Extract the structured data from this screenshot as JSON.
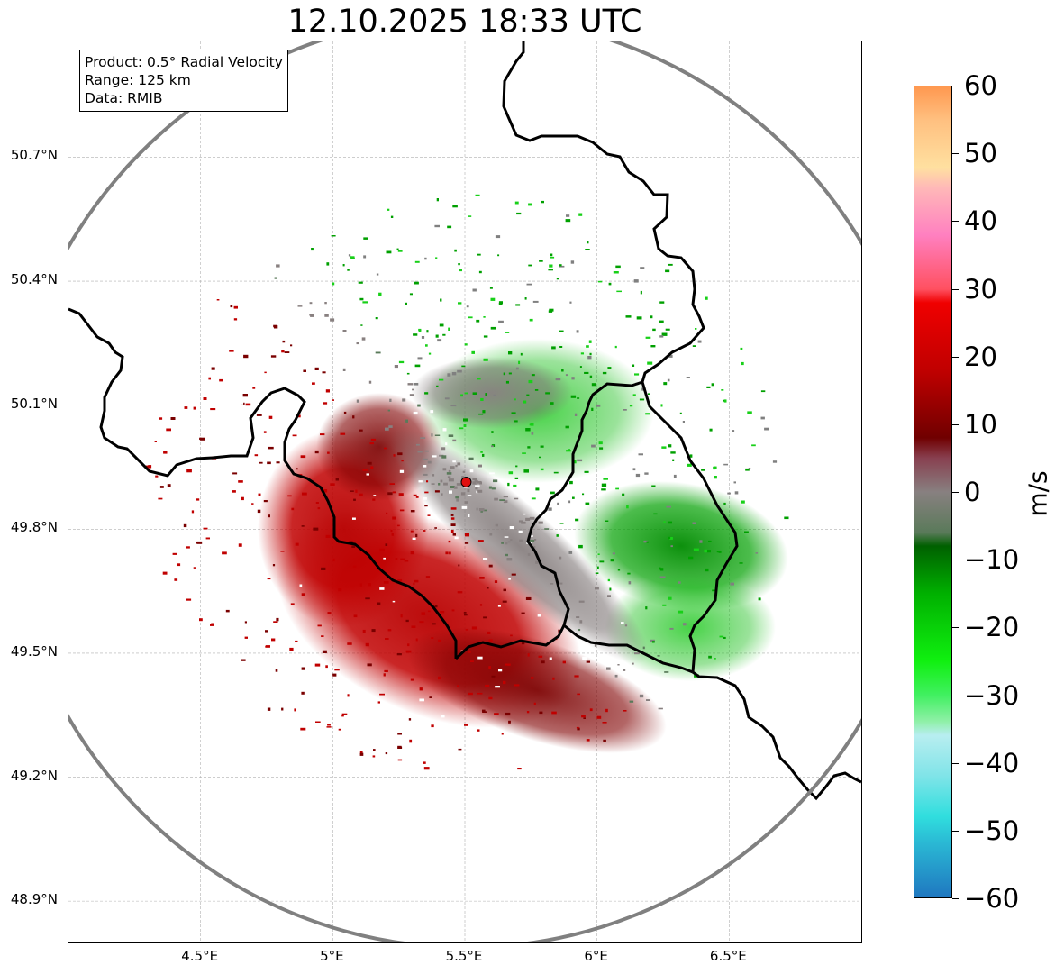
{
  "title": "12.10.2025 18:33 UTC",
  "info": {
    "product": "Product: 0.5° Radial Velocity",
    "range": "Range: 125 km",
    "data": "Data: RMIB"
  },
  "map": {
    "lon_range": [
      4.0,
      7.0
    ],
    "lat_range": [
      48.8,
      50.98
    ],
    "radar_site": {
      "lon": 5.505,
      "lat": 49.914
    },
    "range_km": 125,
    "lat_ticks": [
      {
        "value": 50.7,
        "label": "50.7°N"
      },
      {
        "value": 50.4,
        "label": "50.4°N"
      },
      {
        "value": 50.1,
        "label": "50.1°N"
      },
      {
        "value": 49.8,
        "label": "49.8°N"
      },
      {
        "value": 49.5,
        "label": "49.5°N"
      },
      {
        "value": 49.2,
        "label": "49.2°N"
      },
      {
        "value": 48.9,
        "label": "48.9°N"
      }
    ],
    "lon_ticks": [
      {
        "value": 4.5,
        "label": "4.5°E"
      },
      {
        "value": 5.0,
        "label": "5°E"
      },
      {
        "value": 5.5,
        "label": "5.5°E"
      },
      {
        "value": 6.0,
        "label": "6°E"
      },
      {
        "value": 6.5,
        "label": "6.5°E"
      }
    ],
    "colors": {
      "range_ring": "#808080",
      "border": "#000000",
      "grid": "#b0b0b0",
      "site_marker": "#e01010"
    }
  },
  "colorbar": {
    "unit": "m/s",
    "min": -60,
    "max": 60,
    "ticks": [
      {
        "value": 60,
        "label": "60"
      },
      {
        "value": 50,
        "label": "50"
      },
      {
        "value": 40,
        "label": "40"
      },
      {
        "value": 30,
        "label": "30"
      },
      {
        "value": 20,
        "label": "20"
      },
      {
        "value": 10,
        "label": "10"
      },
      {
        "value": 0,
        "label": "0"
      },
      {
        "value": -10,
        "label": "−10"
      },
      {
        "value": -20,
        "label": "−20"
      },
      {
        "value": -30,
        "label": "−30"
      },
      {
        "value": -40,
        "label": "−40"
      },
      {
        "value": -50,
        "label": "−50"
      },
      {
        "value": -60,
        "label": "−60"
      }
    ],
    "stops": [
      {
        "value": -60,
        "color": "#1f77c0"
      },
      {
        "value": -52,
        "color": "#2ab8d4"
      },
      {
        "value": -48,
        "color": "#30dede"
      },
      {
        "value": -42,
        "color": "#80e4e8"
      },
      {
        "value": -36,
        "color": "#b8eef0"
      },
      {
        "value": -34,
        "color": "#90f0a8"
      },
      {
        "value": -30,
        "color": "#40f060"
      },
      {
        "value": -25,
        "color": "#10f010"
      },
      {
        "value": -15,
        "color": "#00b000"
      },
      {
        "value": -8,
        "color": "#006000"
      },
      {
        "value": -6,
        "color": "#5a7a5a"
      },
      {
        "value": 0,
        "color": "#888080"
      },
      {
        "value": 5,
        "color": "#884050"
      },
      {
        "value": 8,
        "color": "#700000"
      },
      {
        "value": 18,
        "color": "#c00000"
      },
      {
        "value": 28,
        "color": "#f00000"
      },
      {
        "value": 30,
        "color": "#ff5060"
      },
      {
        "value": 38,
        "color": "#ff80c0"
      },
      {
        "value": 45,
        "color": "#ffb8b8"
      },
      {
        "value": 48,
        "color": "#ffe0a0"
      },
      {
        "value": 55,
        "color": "#ffc080"
      },
      {
        "value": 60,
        "color": "#ff9850"
      }
    ]
  }
}
